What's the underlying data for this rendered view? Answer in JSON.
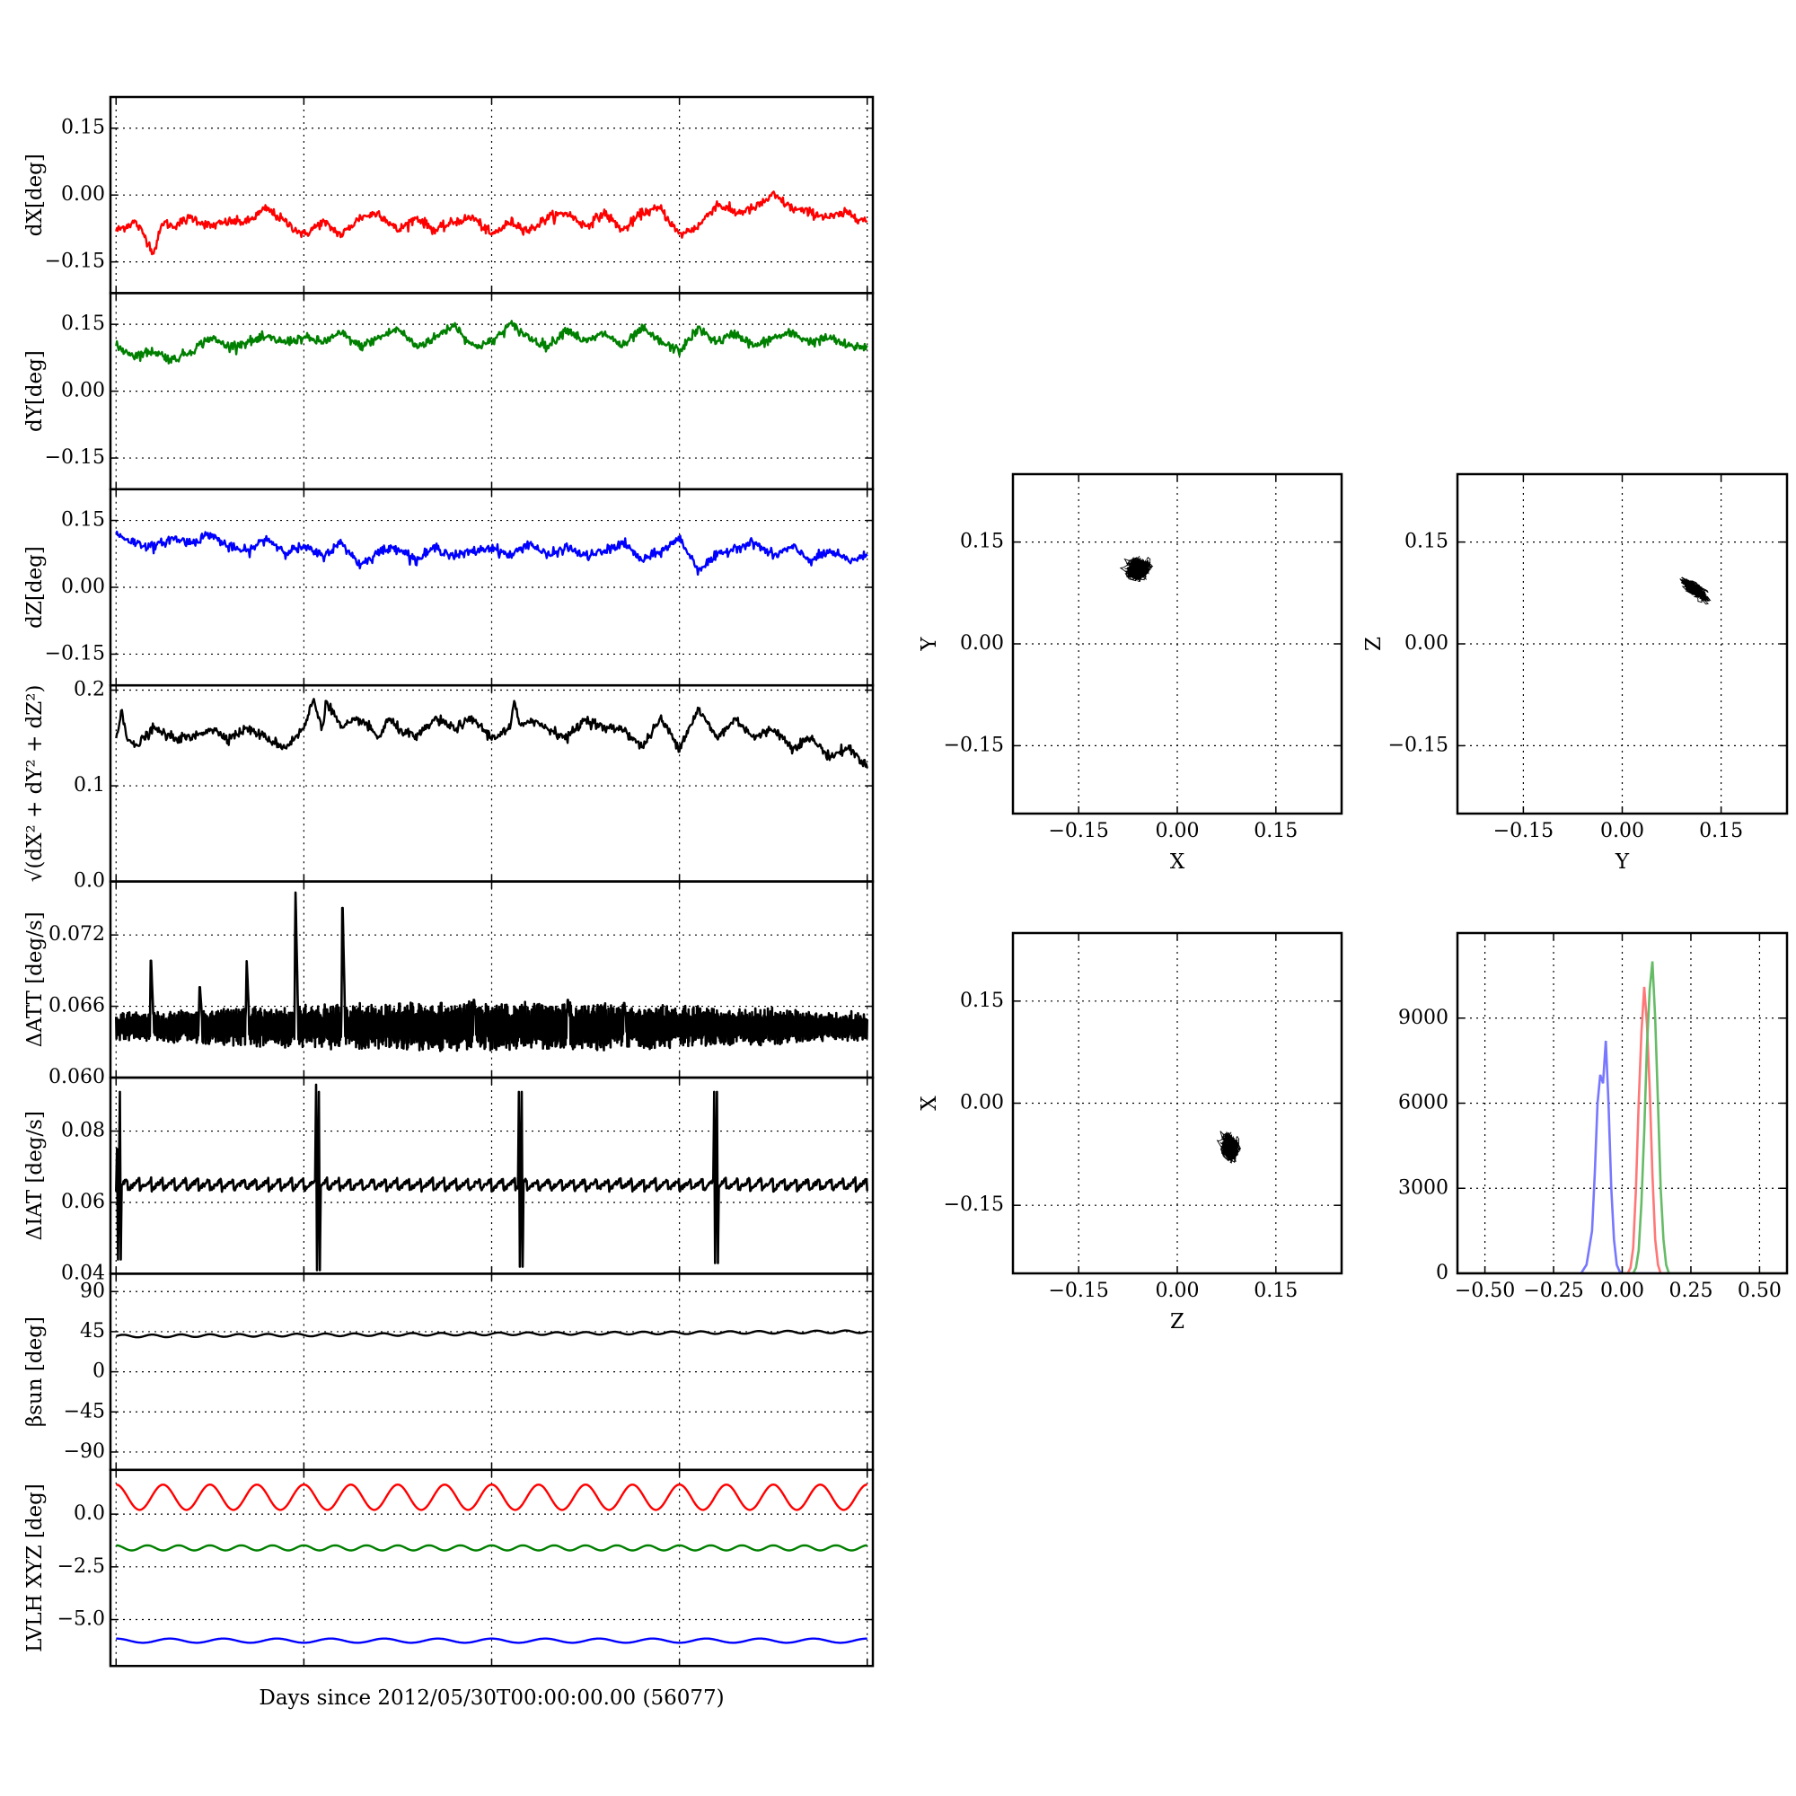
{
  "chart_data": [
    {
      "id": "dx",
      "type": "line",
      "ylabel": "dX[deg]",
      "ylim": [
        -0.22,
        0.22
      ],
      "yticks": [
        -0.15,
        0.0,
        0.15
      ],
      "ytick_labels": [
        "−0.15",
        "0.00",
        "0.15"
      ],
      "grid": true,
      "series": [
        {
          "color": "#ff0000",
          "x": [
            0,
            1,
            1.5,
            2,
            2.5,
            3,
            4,
            5,
            6,
            7,
            8,
            9,
            10,
            11,
            12,
            13,
            14,
            15,
            16,
            17,
            18,
            19,
            20,
            21,
            22,
            23,
            24,
            25,
            26,
            27,
            28,
            29,
            30,
            31,
            32,
            33,
            34,
            35,
            36,
            37,
            38,
            39,
            40
          ],
          "y": [
            -0.08,
            -0.06,
            -0.09,
            -0.13,
            -0.06,
            -0.07,
            -0.05,
            -0.07,
            -0.06,
            -0.06,
            -0.03,
            -0.06,
            -0.09,
            -0.06,
            -0.09,
            -0.05,
            -0.04,
            -0.08,
            -0.05,
            -0.08,
            -0.06,
            -0.05,
            -0.09,
            -0.06,
            -0.08,
            -0.05,
            -0.04,
            -0.07,
            -0.04,
            -0.08,
            -0.04,
            -0.03,
            -0.09,
            -0.07,
            -0.02,
            -0.04,
            -0.03,
            0.0,
            -0.03,
            -0.04,
            -0.05,
            -0.04,
            -0.06
          ]
        }
      ]
    },
    {
      "id": "dy",
      "type": "line",
      "ylabel": "dY[deg]",
      "ylim": [
        -0.22,
        0.22
      ],
      "yticks": [
        -0.15,
        0.0,
        0.15
      ],
      "ytick_labels": [
        "−0.15",
        "0.00",
        "0.15"
      ],
      "grid": true,
      "series": [
        {
          "color": "#008000",
          "x": [
            0,
            1,
            2,
            3,
            4,
            5,
            6,
            7,
            8,
            9,
            10,
            11,
            12,
            13,
            14,
            15,
            16,
            17,
            18,
            19,
            20,
            21,
            22,
            23,
            24,
            25,
            26,
            27,
            28,
            29,
            30,
            31,
            32,
            33,
            34,
            35,
            36,
            37,
            38,
            39,
            40
          ],
          "y": [
            0.1,
            0.08,
            0.09,
            0.07,
            0.09,
            0.12,
            0.1,
            0.11,
            0.12,
            0.11,
            0.12,
            0.11,
            0.13,
            0.1,
            0.12,
            0.14,
            0.1,
            0.12,
            0.15,
            0.1,
            0.11,
            0.15,
            0.12,
            0.1,
            0.14,
            0.11,
            0.13,
            0.1,
            0.14,
            0.11,
            0.09,
            0.14,
            0.11,
            0.13,
            0.1,
            0.12,
            0.13,
            0.11,
            0.12,
            0.1,
            0.1
          ]
        }
      ]
    },
    {
      "id": "dz",
      "type": "line",
      "ylabel": "dZ[deg]",
      "ylim": [
        -0.22,
        0.22
      ],
      "yticks": [
        -0.15,
        0.0,
        0.15
      ],
      "ytick_labels": [
        "−0.15",
        "0.00",
        "0.15"
      ],
      "grid": true,
      "series": [
        {
          "color": "#0000ff",
          "x": [
            0,
            1,
            2,
            3,
            4,
            5,
            6,
            7,
            8,
            9,
            10,
            11,
            12,
            13,
            14,
            15,
            16,
            17,
            18,
            19,
            20,
            21,
            22,
            23,
            24,
            25,
            26,
            27,
            28,
            29,
            30,
            31,
            32,
            33,
            34,
            35,
            36,
            37,
            38,
            39,
            40
          ],
          "y": [
            0.12,
            0.1,
            0.09,
            0.11,
            0.1,
            0.12,
            0.09,
            0.08,
            0.11,
            0.08,
            0.09,
            0.07,
            0.1,
            0.05,
            0.08,
            0.09,
            0.06,
            0.09,
            0.07,
            0.08,
            0.09,
            0.07,
            0.1,
            0.07,
            0.09,
            0.07,
            0.08,
            0.1,
            0.06,
            0.08,
            0.11,
            0.04,
            0.07,
            0.09,
            0.1,
            0.07,
            0.09,
            0.06,
            0.08,
            0.06,
            0.07
          ]
        }
      ]
    },
    {
      "id": "dr",
      "type": "line",
      "ylabel": "√(dX² + dY² + dZ²)",
      "ylim": [
        0.0,
        0.205
      ],
      "yticks": [
        0.0,
        0.1,
        0.2
      ],
      "ytick_labels": [
        "0.0",
        "0.1",
        "0.2"
      ],
      "grid": true,
      "series": [
        {
          "color": "#000000",
          "x": [
            0,
            0.3,
            0.6,
            1,
            2,
            3,
            4,
            5,
            6,
            7,
            8,
            9,
            10,
            10.5,
            11,
            11.2,
            12,
            13,
            14,
            14.5,
            15,
            16,
            17,
            18,
            19,
            20,
            21,
            21.2,
            21.5,
            22,
            23,
            24,
            25,
            26,
            27,
            28,
            29,
            30,
            31,
            32,
            33,
            34,
            35,
            36,
            37,
            38,
            39,
            40
          ],
          "y": [
            0.15,
            0.18,
            0.15,
            0.14,
            0.16,
            0.15,
            0.15,
            0.16,
            0.15,
            0.16,
            0.15,
            0.14,
            0.16,
            0.19,
            0.16,
            0.19,
            0.16,
            0.17,
            0.15,
            0.17,
            0.16,
            0.15,
            0.17,
            0.16,
            0.17,
            0.15,
            0.16,
            0.19,
            0.16,
            0.17,
            0.16,
            0.15,
            0.17,
            0.16,
            0.16,
            0.14,
            0.17,
            0.14,
            0.18,
            0.15,
            0.17,
            0.15,
            0.16,
            0.14,
            0.15,
            0.13,
            0.14,
            0.12
          ]
        }
      ]
    },
    {
      "id": "datt",
      "type": "line",
      "ylabel": "ΔATT [deg/s]",
      "ylim": [
        0.06,
        0.0765
      ],
      "yticks": [
        0.06,
        0.066,
        0.072
      ],
      "ytick_labels": [
        "0.060",
        "0.066",
        "0.072"
      ],
      "grid": true,
      "series": [
        {
          "color": "#000000",
          "x": [
            0,
            1.8,
            1.85,
            2,
            4.4,
            4.45,
            4.6,
            6.9,
            6.95,
            7.1,
            9.5,
            9.55,
            9.7,
            12,
            12.05,
            12.2,
            19,
            19.05,
            19.2,
            24,
            24.05,
            24.2,
            27,
            27.05,
            27.2,
            40
          ],
          "y": [
            0.0645,
            0.0645,
            0.0705,
            0.0645,
            0.0645,
            0.068,
            0.0645,
            0.0645,
            0.07,
            0.0645,
            0.0645,
            0.076,
            0.0645,
            0.0645,
            0.0755,
            0.0645,
            0.0645,
            0.0668,
            0.0645,
            0.0645,
            0.0668,
            0.0645,
            0.0645,
            0.0665,
            0.0645,
            0.0645
          ]
        }
      ],
      "oscillation_band": [
        0.063,
        0.0655
      ]
    },
    {
      "id": "diat",
      "type": "line",
      "ylabel": "ΔIAT [deg/s]",
      "ylim": [
        0.04,
        0.095
      ],
      "yticks": [
        0.04,
        0.06,
        0.08
      ],
      "ytick_labels": [
        "0.04",
        "0.06",
        "0.08"
      ],
      "grid": true,
      "series": [
        {
          "color": "#000000",
          "x": [
            0,
            0.05,
            0.1,
            0.2,
            0.25,
            0.3,
            0.4,
            10.6,
            10.65,
            10.7,
            10.8,
            10.85,
            10.9,
            11.0,
            21.4,
            21.45,
            21.5,
            21.6,
            21.65,
            21.7,
            21.8,
            31.8,
            31.85,
            31.9,
            32.0,
            32.05,
            32.1,
            32.2,
            40
          ],
          "y": [
            0.065,
            0.075,
            0.044,
            0.091,
            0.044,
            0.065,
            0.065,
            0.065,
            0.093,
            0.041,
            0.091,
            0.041,
            0.065,
            0.065,
            0.065,
            0.091,
            0.042,
            0.091,
            0.042,
            0.065,
            0.065,
            0.065,
            0.091,
            0.043,
            0.091,
            0.043,
            0.065,
            0.065,
            0.065
          ]
        }
      ]
    },
    {
      "id": "beta",
      "type": "line",
      "ylabel": "βsun [deg]",
      "ylim": [
        -110,
        110
      ],
      "yticks": [
        -90,
        -45,
        0,
        45,
        90
      ],
      "ytick_labels": [
        "−90",
        "−45",
        "0",
        "45",
        "90"
      ],
      "grid": true,
      "series": [
        {
          "color": "#000000",
          "x": [
            0,
            40
          ],
          "y": [
            40,
            45
          ],
          "ripple_amplitude": 1.5,
          "ripple_cycles": 26
        }
      ]
    },
    {
      "id": "lvlh",
      "type": "line",
      "ylabel": "LVLH XYZ [deg]",
      "ylim": [
        -7.2,
        2.1
      ],
      "yticks": [
        -5.0,
        -2.5,
        0.0
      ],
      "ytick_labels": [
        "−5.0",
        "−2.5",
        "0.0"
      ],
      "xticks": [
        0,
        10,
        20,
        30,
        40
      ],
      "xlabel": "Days since 2012/05/30T00:00:00.00 (56077)",
      "grid": true,
      "series": [
        {
          "color": "#ff0000",
          "base": 0.8,
          "ripple_amplitude": 0.6,
          "ripple_cycles": 16,
          "x": [
            0,
            40
          ]
        },
        {
          "color": "#008000",
          "base": -1.6,
          "ripple_amplitude": 0.12,
          "ripple_cycles": 24,
          "x": [
            0,
            40
          ]
        },
        {
          "color": "#0000ff",
          "base": -6.0,
          "ripple_amplitude": 0.1,
          "ripple_cycles": 14,
          "x": [
            0,
            40
          ]
        }
      ]
    },
    {
      "id": "xy",
      "type": "scatter",
      "xlabel": "X",
      "ylabel": "Y",
      "xlim": [
        -0.25,
        0.25
      ],
      "ylim": [
        -0.25,
        0.25
      ],
      "ticks": [
        -0.15,
        0.0,
        0.15
      ],
      "tick_labels": [
        "−0.15",
        "0.00",
        "0.15"
      ],
      "grid": true,
      "cluster": {
        "cx": -0.06,
        "cy": 0.11,
        "sx": 0.022,
        "sy": 0.018,
        "corr": 0.1
      }
    },
    {
      "id": "yz",
      "type": "scatter",
      "xlabel": "Y",
      "ylabel": "Z",
      "xlim": [
        -0.25,
        0.25
      ],
      "ylim": [
        -0.25,
        0.25
      ],
      "ticks": [
        -0.15,
        0.0,
        0.15
      ],
      "tick_labels": [
        "−0.15",
        "0.00",
        "0.15"
      ],
      "grid": true,
      "cluster": {
        "cx": 0.11,
        "cy": 0.08,
        "sx": 0.022,
        "sy": 0.018,
        "corr": -0.75
      }
    },
    {
      "id": "zx",
      "type": "scatter",
      "xlabel": "Z",
      "ylabel": "X",
      "xlim": [
        -0.25,
        0.25
      ],
      "ylim": [
        -0.25,
        0.25
      ],
      "ticks": [
        -0.15,
        0.0,
        0.15
      ],
      "tick_labels": [
        "−0.15",
        "0.00",
        "0.15"
      ],
      "grid": true,
      "cluster": {
        "cx": 0.08,
        "cy": -0.065,
        "sx": 0.016,
        "sy": 0.022,
        "corr": -0.2
      }
    },
    {
      "id": "hist",
      "type": "line",
      "xlim": [
        -0.6,
        0.6
      ],
      "ylim": [
        0,
        12000
      ],
      "xticks": [
        -0.5,
        -0.25,
        0.0,
        0.25,
        0.5
      ],
      "xtick_labels": [
        "−0.50",
        "−0.25",
        "0.00",
        "0.25",
        "0.50"
      ],
      "yticks": [
        0,
        3000,
        6000,
        9000
      ],
      "ytick_labels": [
        "0",
        "3000",
        "6000",
        "9000"
      ],
      "grid": true,
      "series": [
        {
          "color": "#7777ff",
          "x": [
            -0.6,
            -0.15,
            -0.13,
            -0.11,
            -0.1,
            -0.09,
            -0.08,
            -0.07,
            -0.06,
            -0.05,
            -0.04,
            -0.03,
            -0.02,
            -0.01,
            0.0,
            0.6
          ],
          "y": [
            0,
            0,
            300,
            1500,
            3500,
            6000,
            7000,
            6700,
            8200,
            6000,
            3000,
            1200,
            300,
            80,
            0,
            0
          ]
        },
        {
          "color": "#ff7777",
          "x": [
            -0.6,
            0.02,
            0.03,
            0.04,
            0.05,
            0.06,
            0.07,
            0.08,
            0.09,
            0.1,
            0.11,
            0.12,
            0.13,
            0.14,
            0.6
          ],
          "y": [
            0,
            0,
            200,
            900,
            3000,
            6000,
            8500,
            10100,
            8800,
            6500,
            3500,
            1200,
            300,
            0,
            0
          ]
        },
        {
          "color": "#66bb66",
          "x": [
            -0.6,
            0.04,
            0.05,
            0.06,
            0.07,
            0.08,
            0.09,
            0.1,
            0.11,
            0.12,
            0.13,
            0.14,
            0.15,
            0.16,
            0.17,
            0.6
          ],
          "y": [
            0,
            0,
            200,
            800,
            2500,
            5000,
            8000,
            10000,
            11000,
            9000,
            6000,
            3000,
            1200,
            300,
            0,
            0
          ]
        }
      ]
    }
  ]
}
